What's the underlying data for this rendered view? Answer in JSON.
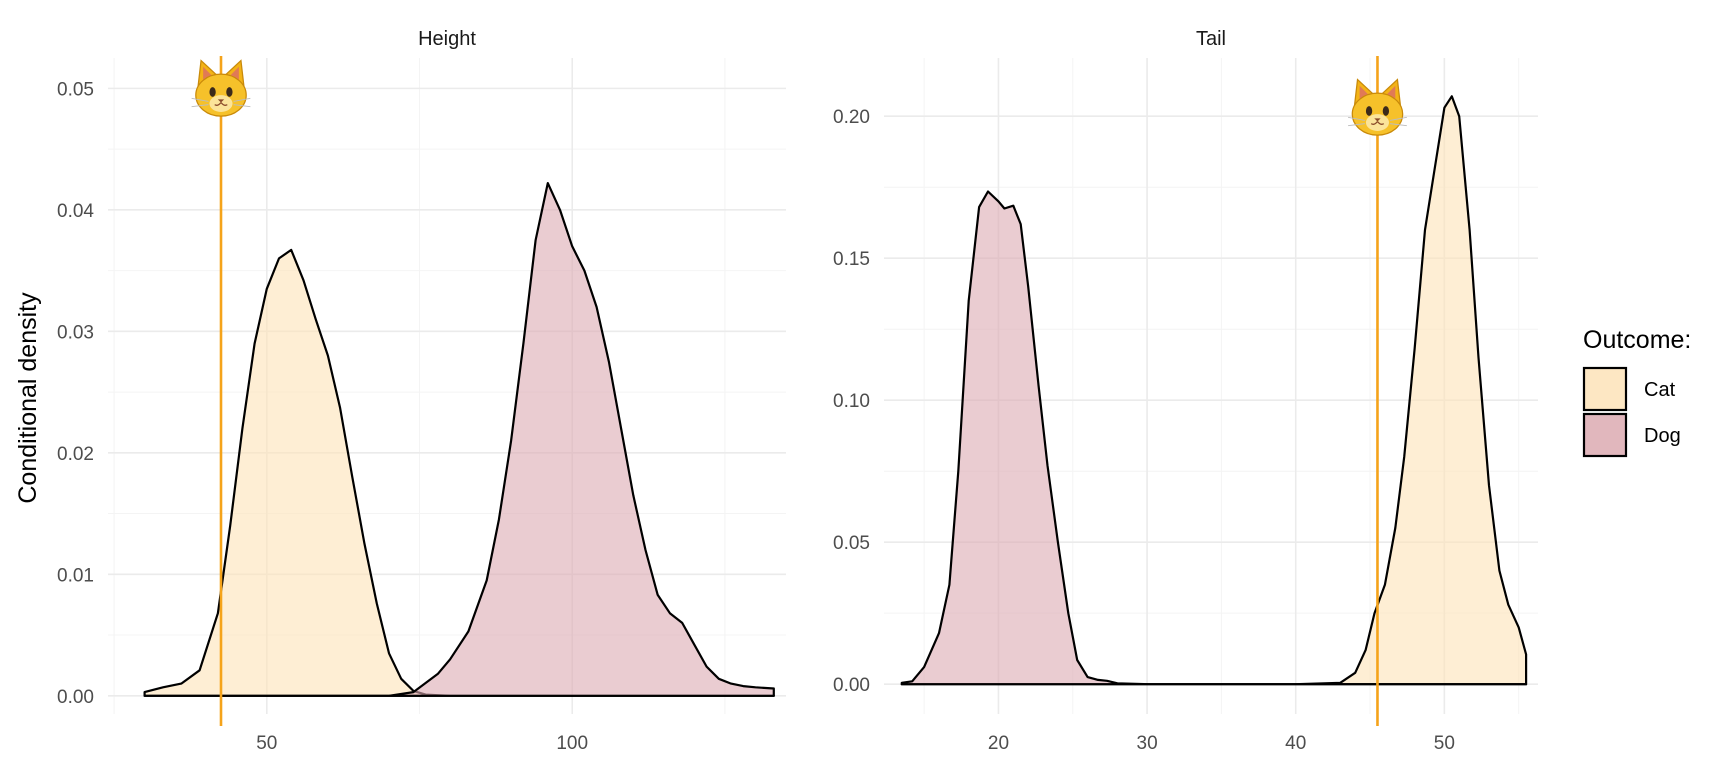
{
  "chart_data": {
    "type": "area",
    "ylabel": "Conditional density",
    "legend": {
      "title": "Outcome:",
      "position": "right",
      "entries": [
        {
          "name": "Cat",
          "color": "#fde3b8"
        },
        {
          "name": "Dog",
          "color": "#dcaab2"
        }
      ]
    },
    "marker_color": "#f5a31a",
    "marker_icon": "cat-face-icon",
    "grid": true,
    "panels": [
      {
        "title": "Height",
        "xlim": [
          24,
          135
        ],
        "ylim": [
          -0.0015,
          0.0525
        ],
        "xticks": [
          50,
          100
        ],
        "xticks_minor": [
          25,
          75,
          125
        ],
        "yticks": [
          0.0,
          0.01,
          0.02,
          0.03,
          0.04,
          0.05
        ],
        "ytick_labels": [
          "0.00",
          "0.01",
          "0.02",
          "0.03",
          "0.04",
          "0.05"
        ],
        "marker_x": 42.5,
        "series": [
          {
            "name": "Cat",
            "points": [
              [
                30,
                0.0003
              ],
              [
                33,
                0.0007
              ],
              [
                36,
                0.001
              ],
              [
                39,
                0.0021
              ],
              [
                42,
                0.0068
              ],
              [
                44,
                0.014
              ],
              [
                46,
                0.022
              ],
              [
                48,
                0.029
              ],
              [
                50,
                0.0335
              ],
              [
                52,
                0.036
              ],
              [
                54,
                0.0367
              ],
              [
                56,
                0.0342
              ],
              [
                58,
                0.031
              ],
              [
                60,
                0.028
              ],
              [
                62,
                0.0237
              ],
              [
                64,
                0.018
              ],
              [
                66,
                0.0125
              ],
              [
                68,
                0.0076
              ],
              [
                70,
                0.0035
              ],
              [
                72,
                0.0014
              ],
              [
                74,
                0.0004
              ],
              [
                76,
                0.0001
              ],
              [
                80,
                0.0
              ],
              [
                90,
                0.0
              ],
              [
                133,
                0.0
              ]
            ]
          },
          {
            "name": "Dog",
            "points": [
              [
                30,
                0.0
              ],
              [
                70,
                0.0
              ],
              [
                74,
                0.0003
              ],
              [
                78,
                0.0018
              ],
              [
                80,
                0.003
              ],
              [
                83,
                0.0053
              ],
              [
                86,
                0.0095
              ],
              [
                88,
                0.0145
              ],
              [
                90,
                0.021
              ],
              [
                92,
                0.029
              ],
              [
                94,
                0.0375
              ],
              [
                96,
                0.0422
              ],
              [
                98,
                0.04
              ],
              [
                100,
                0.037
              ],
              [
                102,
                0.035
              ],
              [
                104,
                0.032
              ],
              [
                106,
                0.0275
              ],
              [
                108,
                0.022
              ],
              [
                110,
                0.0165
              ],
              [
                112,
                0.012
              ],
              [
                114,
                0.0083
              ],
              [
                116,
                0.0068
              ],
              [
                118,
                0.006
              ],
              [
                120,
                0.0042
              ],
              [
                122,
                0.0024
              ],
              [
                124,
                0.0014
              ],
              [
                126,
                0.001
              ],
              [
                128,
                0.0008
              ],
              [
                130,
                0.0007
              ],
              [
                133,
                0.0006
              ]
            ]
          }
        ]
      },
      {
        "title": "Tail",
        "xlim": [
          12.3,
          56.3
        ],
        "ylim": [
          -0.0105,
          0.2205
        ],
        "xticks": [
          20,
          30,
          40,
          50
        ],
        "xticks_minor": [
          15,
          25,
          35,
          45,
          55
        ],
        "yticks": [
          0.0,
          0.05,
          0.1,
          0.15,
          0.2
        ],
        "ytick_labels": [
          "0.00",
          "0.05",
          "0.10",
          "0.15",
          "0.20"
        ],
        "marker_x": 45.5,
        "series": [
          {
            "name": "Cat",
            "points": [
              [
                13.5,
                0.0
              ],
              [
                40,
                0.0
              ],
              [
                43,
                0.0005
              ],
              [
                44,
                0.004
              ],
              [
                44.7,
                0.012
              ],
              [
                45.3,
                0.025
              ],
              [
                46,
                0.035
              ],
              [
                46.7,
                0.055
              ],
              [
                47.3,
                0.08
              ],
              [
                48,
                0.118
              ],
              [
                48.7,
                0.16
              ],
              [
                49.3,
                0.18
              ],
              [
                50,
                0.203
              ],
              [
                50.5,
                0.207
              ],
              [
                51,
                0.2
              ],
              [
                51.7,
                0.16
              ],
              [
                52.3,
                0.115
              ],
              [
                53,
                0.07
              ],
              [
                53.7,
                0.04
              ],
              [
                54.3,
                0.028
              ],
              [
                55,
                0.02
              ],
              [
                55.5,
                0.0105
              ]
            ]
          },
          {
            "name": "Dog",
            "points": [
              [
                13.5,
                0.0005
              ],
              [
                14.2,
                0.001
              ],
              [
                15,
                0.006
              ],
              [
                16,
                0.018
              ],
              [
                16.7,
                0.035
              ],
              [
                17.3,
                0.075
              ],
              [
                18,
                0.135
              ],
              [
                18.7,
                0.168
              ],
              [
                19.3,
                0.1735
              ],
              [
                20,
                0.17
              ],
              [
                20.4,
                0.1675
              ],
              [
                21,
                0.1685
              ],
              [
                21.5,
                0.162
              ],
              [
                22,
                0.14
              ],
              [
                22.7,
                0.105
              ],
              [
                23.3,
                0.077
              ],
              [
                24,
                0.05
              ],
              [
                24.7,
                0.025
              ],
              [
                25.3,
                0.0085
              ],
              [
                26,
                0.0025
              ],
              [
                26.7,
                0.0015
              ],
              [
                27.3,
                0.0012
              ],
              [
                28,
                0.0003
              ],
              [
                30,
                0.0
              ],
              [
                55.5,
                0.0
              ]
            ]
          }
        ]
      }
    ]
  }
}
